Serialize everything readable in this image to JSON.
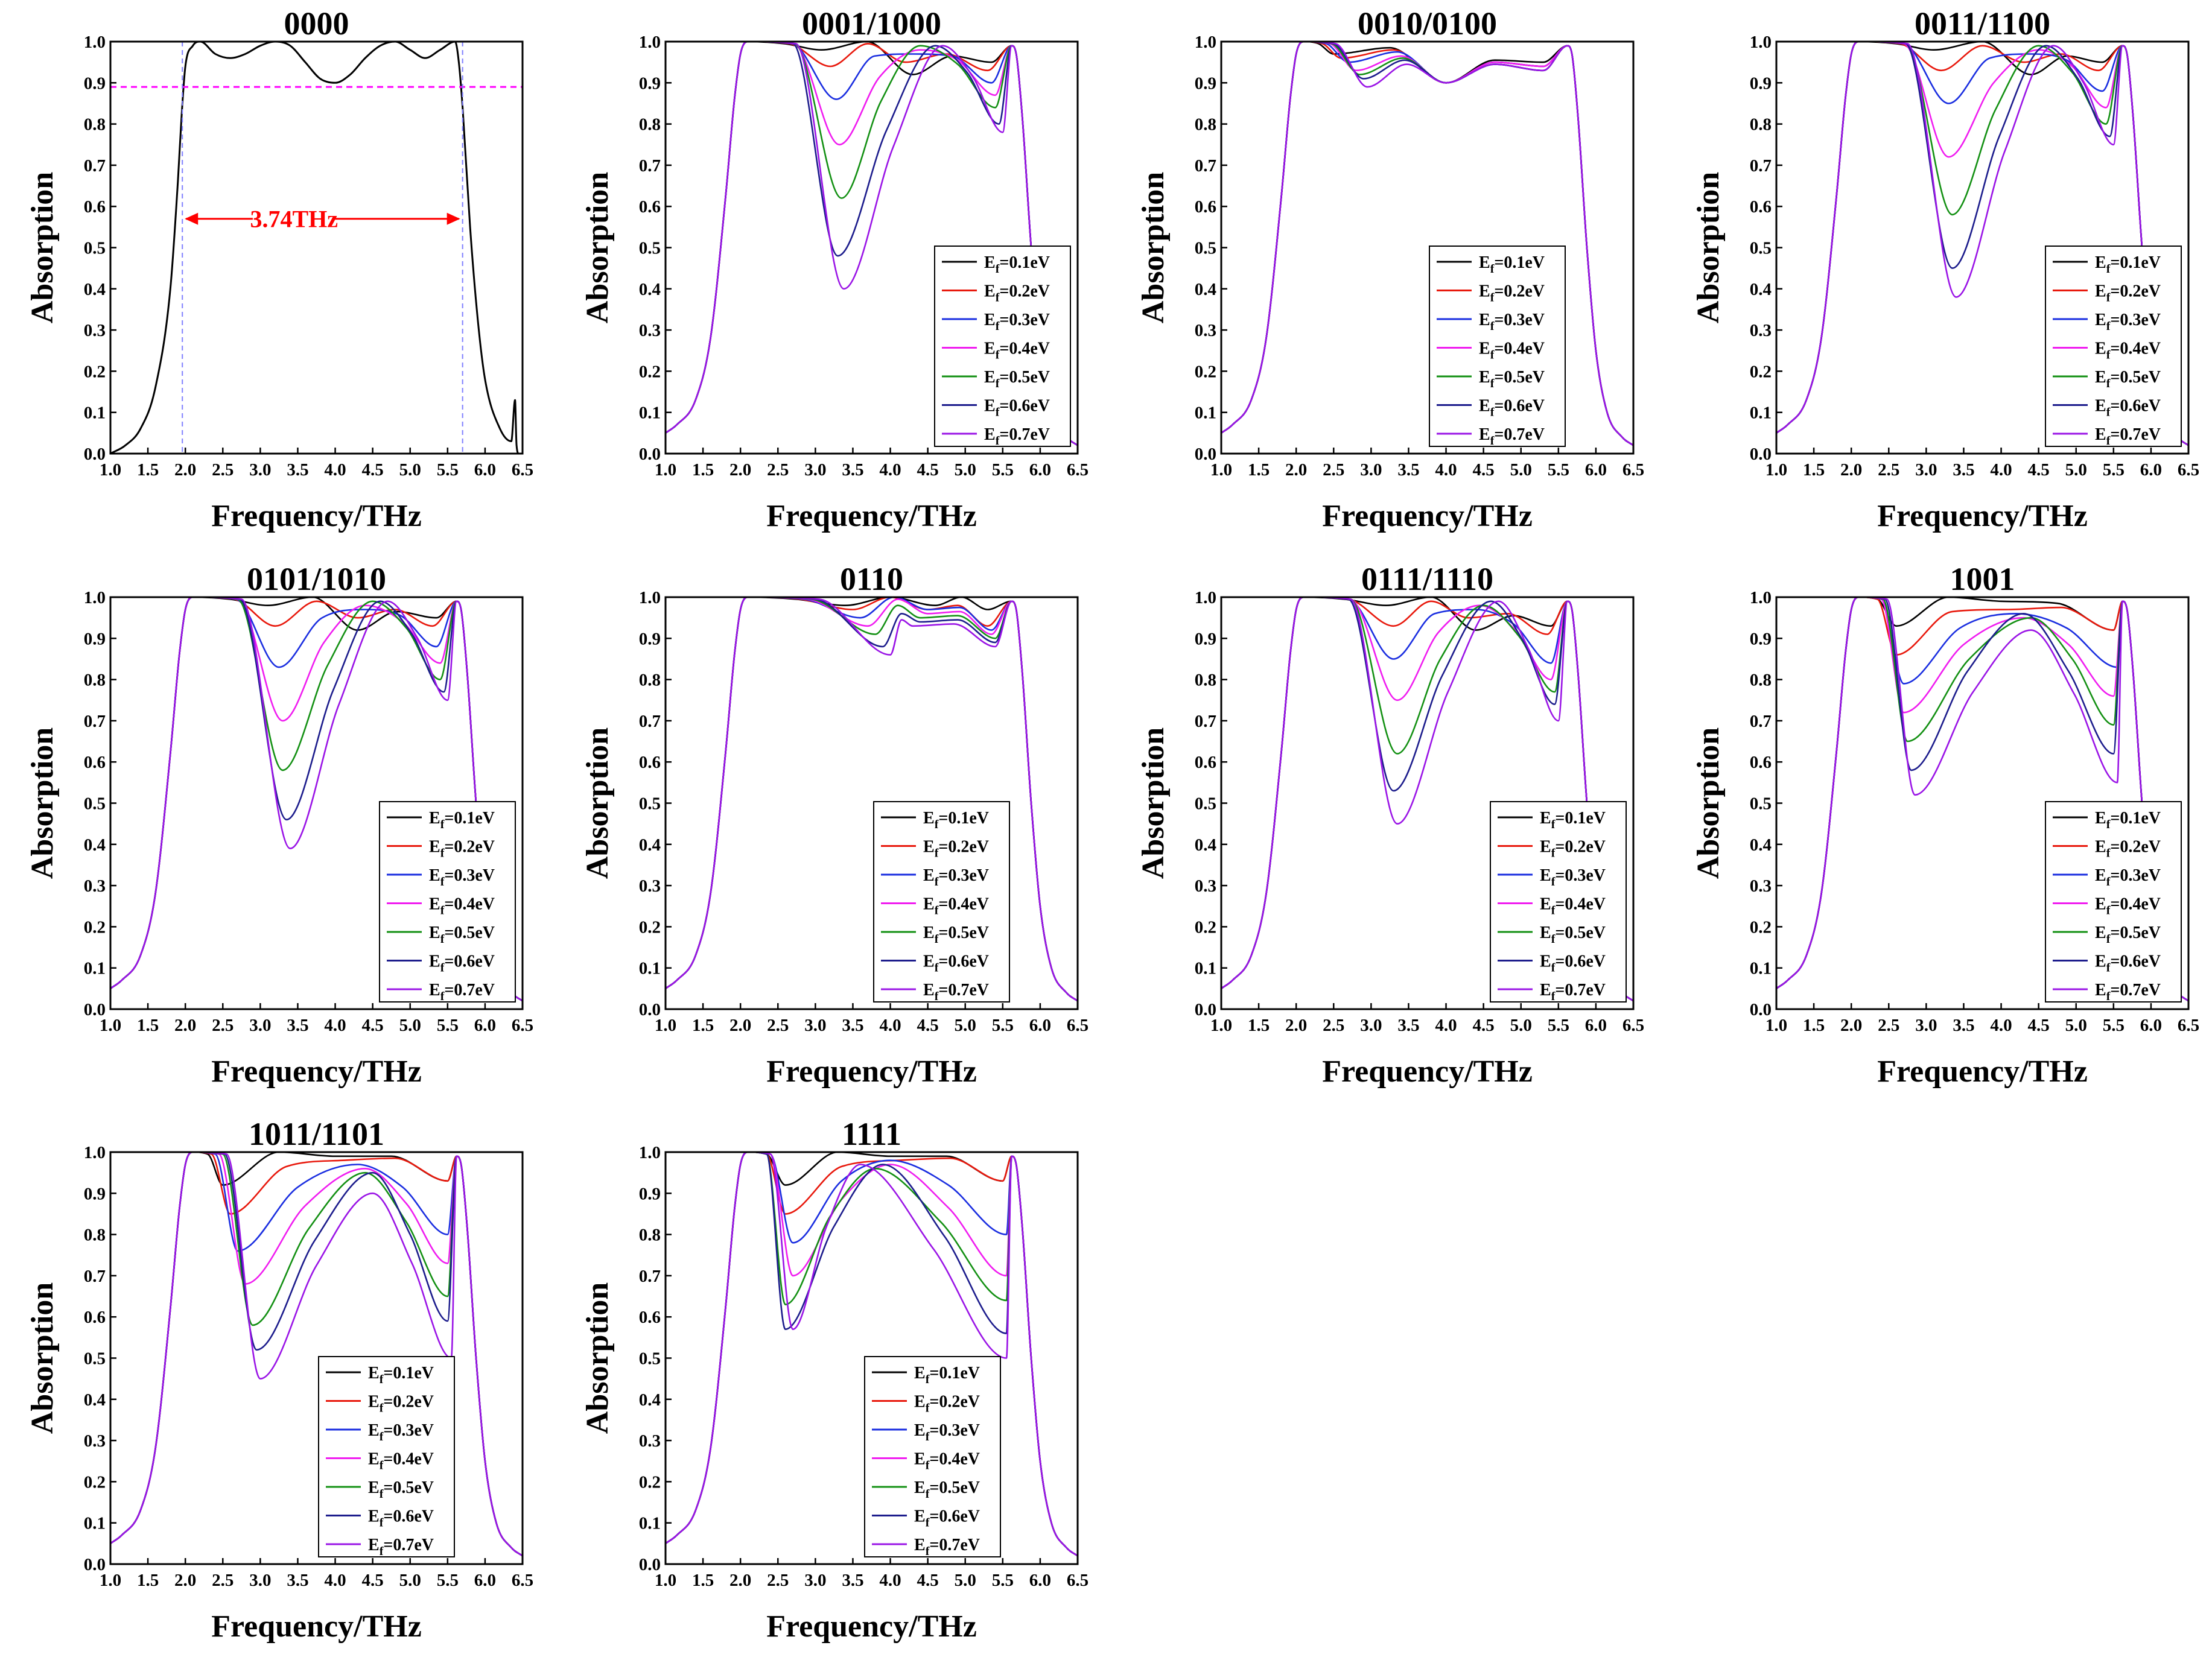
{
  "figure": {
    "xlabel": "Frequency/THz",
    "ylabel": "Absorption",
    "x_ticks": [
      "1.0",
      "1.5",
      "2.0",
      "2.5",
      "3.0",
      "3.5",
      "4.0",
      "4.5",
      "5.0",
      "5.5",
      "6.0",
      "6.5"
    ],
    "y_ticks": [
      "0.0",
      "0.1",
      "0.2",
      "0.3",
      "0.4",
      "0.5",
      "0.6",
      "0.7",
      "0.8",
      "0.9",
      "1.0"
    ],
    "series_names": [
      "Ef=0.1eV",
      "Ef=0.2eV",
      "Ef=0.3eV",
      "Ef=0.4eV",
      "Ef=0.5eV",
      "Ef=0.6eV",
      "Ef=0.7eV"
    ],
    "series_colors": [
      "#000000",
      "#e8180c",
      "#1a2ee0",
      "#f01cf0",
      "#139013",
      "#1c1c8c",
      "#9a14e6"
    ],
    "legend_items": [
      {
        "base": "E",
        "sub": "f",
        "value": "=0.1eV"
      },
      {
        "base": "E",
        "sub": "f",
        "value": "=0.2eV"
      },
      {
        "base": "E",
        "sub": "f",
        "value": "=0.3eV"
      },
      {
        "base": "E",
        "sub": "f",
        "value": "=0.4eV"
      },
      {
        "base": "E",
        "sub": "f",
        "value": "=0.5eV"
      },
      {
        "base": "E",
        "sub": "f",
        "value": "=0.6eV"
      },
      {
        "base": "E",
        "sub": "f",
        "value": "=0.7eV"
      }
    ],
    "reference_line_color": "#ff00ff",
    "bandwidth_marker_color": "#ff0000",
    "bandwidth_guide_color": "#8080ff"
  },
  "chart_data": [
    {
      "id": "p0000",
      "type": "line",
      "title": "0000",
      "xlabel": "Frequency/THz",
      "ylabel": "Absorption",
      "xlim": [
        1.0,
        6.5
      ],
      "ylim": [
        0.0,
        1.0
      ],
      "legend": "none",
      "series": [
        {
          "name": "Absorption",
          "color": "#000000",
          "x": [
            1.0,
            1.2,
            1.4,
            1.6,
            1.8,
            1.9,
            1.95,
            2.0,
            2.1,
            2.2,
            2.4,
            2.6,
            2.8,
            3.0,
            3.2,
            3.4,
            3.6,
            3.8,
            4.0,
            4.2,
            4.4,
            4.6,
            4.8,
            5.0,
            5.2,
            5.4,
            5.6,
            5.65,
            5.7,
            5.8,
            5.9,
            6.0,
            6.2,
            6.35,
            6.4,
            6.42,
            6.45,
            6.5
          ],
          "y": [
            0.0,
            0.02,
            0.06,
            0.16,
            0.4,
            0.66,
            0.82,
            0.94,
            0.99,
            1.0,
            0.97,
            0.96,
            0.97,
            0.99,
            1.0,
            0.99,
            0.95,
            0.91,
            0.9,
            0.92,
            0.96,
            0.99,
            1.0,
            0.98,
            0.96,
            0.98,
            1.0,
            0.95,
            0.84,
            0.55,
            0.33,
            0.18,
            0.06,
            0.03,
            0.13,
            0.02,
            0.0,
            0.0
          ]
        }
      ],
      "annotations": {
        "reference_level": 0.89,
        "bandwidth_label": "3.74THz",
        "band_start": 1.96,
        "band_end": 5.7
      }
    },
    {
      "id": "p0001",
      "type": "line",
      "title": "0001/1000",
      "xlabel": "Frequency/THz",
      "ylabel": "Absorption",
      "xlim": [
        1.0,
        6.5
      ],
      "ylim": [
        0.0,
        1.0
      ],
      "legend": "bottom-right",
      "dips": [
        [
          3.08,
          0.98
        ],
        [
          3.2,
          0.94
        ],
        [
          3.28,
          0.86
        ],
        [
          3.32,
          0.75
        ],
        [
          3.35,
          0.62
        ],
        [
          3.3,
          0.48
        ],
        [
          3.38,
          0.4
        ]
      ],
      "highs": [
        [
          4.3,
          0.92
        ],
        [
          4.2,
          0.95
        ],
        [
          4.3,
          0.97
        ],
        [
          4.4,
          0.98
        ],
        [
          4.4,
          0.99
        ],
        [
          4.6,
          0.99
        ],
        [
          4.7,
          0.99
        ]
      ],
      "dips2": [
        [
          5.35,
          0.95
        ],
        [
          5.3,
          0.93
        ],
        [
          5.35,
          0.9
        ],
        [
          5.4,
          0.87
        ],
        [
          5.4,
          0.84
        ],
        [
          5.45,
          0.8
        ],
        [
          5.5,
          0.78
        ]
      ]
    },
    {
      "id": "p0010",
      "type": "line",
      "title": "0010/0100",
      "xlabel": "Frequency/THz",
      "ylabel": "Absorption",
      "xlim": [
        1.0,
        6.5
      ],
      "ylim": [
        0.0,
        1.0
      ],
      "legend": "bottom-center",
      "dips": [
        [
          2.5,
          0.97
        ],
        [
          2.6,
          0.96
        ],
        [
          2.7,
          0.95
        ],
        [
          2.8,
          0.93
        ],
        [
          2.85,
          0.92
        ],
        [
          2.9,
          0.91
        ],
        [
          2.95,
          0.89
        ]
      ],
      "highs": [
        [
          4.0,
          0.9
        ],
        [
          4.0,
          0.9
        ],
        [
          4.0,
          0.9
        ],
        [
          4.0,
          0.9
        ],
        [
          4.0,
          0.9
        ],
        [
          4.0,
          0.9
        ],
        [
          4.0,
          0.9
        ]
      ],
      "dips2": [
        [
          5.3,
          0.95
        ],
        [
          5.3,
          0.94
        ],
        [
          5.3,
          0.94
        ],
        [
          5.3,
          0.94
        ],
        [
          5.3,
          0.93
        ],
        [
          5.3,
          0.93
        ],
        [
          5.3,
          0.93
        ]
      ]
    },
    {
      "id": "p0011",
      "type": "line",
      "title": "0011/1100",
      "xlabel": "Frequency/THz",
      "ylabel": "Absorption",
      "xlim": [
        1.0,
        6.5
      ],
      "ylim": [
        0.0,
        1.0
      ],
      "legend": "bottom-right",
      "dips": [
        [
          3.1,
          0.98
        ],
        [
          3.2,
          0.93
        ],
        [
          3.3,
          0.85
        ],
        [
          3.3,
          0.72
        ],
        [
          3.35,
          0.58
        ],
        [
          3.35,
          0.45
        ],
        [
          3.4,
          0.38
        ]
      ],
      "highs": [
        [
          4.4,
          0.92
        ],
        [
          4.3,
          0.95
        ],
        [
          4.4,
          0.97
        ],
        [
          4.5,
          0.98
        ],
        [
          4.5,
          0.99
        ],
        [
          4.6,
          0.99
        ],
        [
          4.7,
          0.99
        ]
      ],
      "dips2": [
        [
          5.35,
          0.95
        ],
        [
          5.3,
          0.93
        ],
        [
          5.35,
          0.88
        ],
        [
          5.4,
          0.84
        ],
        [
          5.4,
          0.8
        ],
        [
          5.45,
          0.77
        ],
        [
          5.5,
          0.75
        ]
      ]
    },
    {
      "id": "p0101",
      "type": "line",
      "title": "0101/1010",
      "xlabel": "Frequency/THz",
      "ylabel": "Absorption",
      "xlim": [
        1.0,
        6.5
      ],
      "ylim": [
        0.0,
        1.0
      ],
      "legend": "bottom-right",
      "dips": [
        [
          3.1,
          0.98
        ],
        [
          3.2,
          0.93
        ],
        [
          3.25,
          0.83
        ],
        [
          3.3,
          0.7
        ],
        [
          3.3,
          0.58
        ],
        [
          3.35,
          0.46
        ],
        [
          3.4,
          0.39
        ]
      ],
      "highs": [
        [
          4.3,
          0.92
        ],
        [
          4.3,
          0.95
        ],
        [
          4.4,
          0.97
        ],
        [
          4.4,
          0.98
        ],
        [
          4.5,
          0.99
        ],
        [
          4.6,
          0.99
        ],
        [
          4.7,
          0.99
        ]
      ],
      "dips2": [
        [
          5.35,
          0.95
        ],
        [
          5.3,
          0.93
        ],
        [
          5.35,
          0.88
        ],
        [
          5.4,
          0.84
        ],
        [
          5.4,
          0.8
        ],
        [
          5.45,
          0.77
        ],
        [
          5.5,
          0.75
        ]
      ]
    },
    {
      "id": "p0110",
      "type": "line",
      "title": "0110",
      "xlabel": "Frequency/THz",
      "ylabel": "Absorption",
      "xlim": [
        1.0,
        6.5
      ],
      "ylim": [
        0.0,
        1.0
      ],
      "legend": "bottom-center",
      "dips": [
        [
          3.4,
          0.98
        ],
        [
          3.5,
          0.97
        ],
        [
          3.6,
          0.95
        ],
        [
          3.7,
          0.93
        ],
        [
          3.8,
          0.91
        ],
        [
          3.9,
          0.88
        ],
        [
          4.0,
          0.86
        ]
      ],
      "highs": [
        [
          4.6,
          0.98
        ],
        [
          4.5,
          0.97
        ],
        [
          4.5,
          0.97
        ],
        [
          4.5,
          0.96
        ],
        [
          4.4,
          0.95
        ],
        [
          4.4,
          0.94
        ],
        [
          4.3,
          0.93
        ]
      ],
      "dips2": [
        [
          5.3,
          0.97
        ],
        [
          5.3,
          0.93
        ],
        [
          5.35,
          0.92
        ],
        [
          5.35,
          0.91
        ],
        [
          5.4,
          0.9
        ],
        [
          5.4,
          0.89
        ],
        [
          5.4,
          0.88
        ]
      ]
    },
    {
      "id": "p0111",
      "type": "line",
      "title": "0111/1110",
      "xlabel": "Frequency/THz",
      "ylabel": "Absorption",
      "xlim": [
        1.0,
        6.5
      ],
      "ylim": [
        0.0,
        1.0
      ],
      "legend": "bottom-right",
      "dips": [
        [
          3.2,
          0.98
        ],
        [
          3.3,
          0.93
        ],
        [
          3.3,
          0.85
        ],
        [
          3.35,
          0.75
        ],
        [
          3.35,
          0.62
        ],
        [
          3.3,
          0.53
        ],
        [
          3.35,
          0.45
        ]
      ],
      "highs": [
        [
          4.4,
          0.92
        ],
        [
          4.3,
          0.95
        ],
        [
          4.4,
          0.97
        ],
        [
          4.45,
          0.98
        ],
        [
          4.5,
          0.98
        ],
        [
          4.6,
          0.99
        ],
        [
          4.7,
          0.99
        ]
      ],
      "dips2": [
        [
          5.4,
          0.93
        ],
        [
          5.35,
          0.91
        ],
        [
          5.4,
          0.84
        ],
        [
          5.4,
          0.8
        ],
        [
          5.45,
          0.77
        ],
        [
          5.45,
          0.74
        ],
        [
          5.5,
          0.7
        ]
      ]
    },
    {
      "id": "p1001",
      "type": "line",
      "title": "1001",
      "xlabel": "Frequency/THz",
      "ylabel": "Absorption",
      "xlim": [
        1.0,
        6.5
      ],
      "ylim": [
        0.0,
        1.0
      ],
      "legend": "bottom-right",
      "dips": [
        [
          2.6,
          0.93
        ],
        [
          2.6,
          0.86
        ],
        [
          2.7,
          0.79
        ],
        [
          2.7,
          0.72
        ],
        [
          2.75,
          0.65
        ],
        [
          2.8,
          0.58
        ],
        [
          2.85,
          0.52
        ]
      ],
      "highs": [
        [
          4.0,
          0.99
        ],
        [
          4.1,
          0.97
        ],
        [
          4.2,
          0.96
        ],
        [
          4.3,
          0.95
        ],
        [
          4.4,
          0.95
        ],
        [
          4.3,
          0.96
        ],
        [
          4.4,
          0.92
        ]
      ],
      "dips2": [
        [
          5.5,
          0.92
        ],
        [
          5.5,
          0.92
        ],
        [
          5.55,
          0.83
        ],
        [
          5.5,
          0.76
        ],
        [
          5.5,
          0.69
        ],
        [
          5.5,
          0.62
        ],
        [
          5.55,
          0.55
        ]
      ]
    },
    {
      "id": "p1011",
      "type": "line",
      "title": "1011/1101",
      "xlabel": "Frequency/THz",
      "ylabel": "Absorption",
      "xlim": [
        1.0,
        6.5
      ],
      "ylim": [
        0.0,
        1.0
      ],
      "legend": "bottom-center",
      "dips": [
        [
          2.5,
          0.92
        ],
        [
          2.6,
          0.85
        ],
        [
          2.7,
          0.76
        ],
        [
          2.8,
          0.68
        ],
        [
          2.9,
          0.58
        ],
        [
          2.95,
          0.52
        ],
        [
          3.0,
          0.45
        ]
      ],
      "highs": [
        [
          4.0,
          0.99
        ],
        [
          4.1,
          0.98
        ],
        [
          4.3,
          0.97
        ],
        [
          4.4,
          0.96
        ],
        [
          4.4,
          0.95
        ],
        [
          4.5,
          0.95
        ],
        [
          4.5,
          0.9
        ]
      ],
      "dips2": [
        [
          5.5,
          0.93
        ],
        [
          5.5,
          0.93
        ],
        [
          5.5,
          0.8
        ],
        [
          5.5,
          0.73
        ],
        [
          5.5,
          0.65
        ],
        [
          5.5,
          0.59
        ],
        [
          5.55,
          0.5
        ]
      ]
    },
    {
      "id": "p1111",
      "type": "line",
      "title": "1111",
      "xlabel": "Frequency/THz",
      "ylabel": "Absorption",
      "xlim": [
        1.0,
        6.5
      ],
      "ylim": [
        0.0,
        1.0
      ],
      "legend": "bottom-left",
      "dips": [
        [
          2.6,
          0.92
        ],
        [
          2.6,
          0.85
        ],
        [
          2.7,
          0.78
        ],
        [
          2.7,
          0.7
        ],
        [
          2.6,
          0.63
        ],
        [
          2.6,
          0.57
        ],
        [
          2.7,
          0.57
        ]
      ],
      "highs": [
        [
          4.0,
          0.99
        ],
        [
          4.1,
          0.98
        ],
        [
          4.0,
          0.98
        ],
        [
          4.0,
          0.97
        ],
        [
          3.8,
          0.96
        ],
        [
          3.9,
          0.97
        ],
        [
          3.6,
          0.97
        ]
      ],
      "dips2": [
        [
          5.5,
          0.93
        ],
        [
          5.5,
          0.93
        ],
        [
          5.55,
          0.8
        ],
        [
          5.55,
          0.7
        ],
        [
          5.55,
          0.64
        ],
        [
          5.55,
          0.56
        ],
        [
          5.55,
          0.5
        ]
      ]
    }
  ]
}
